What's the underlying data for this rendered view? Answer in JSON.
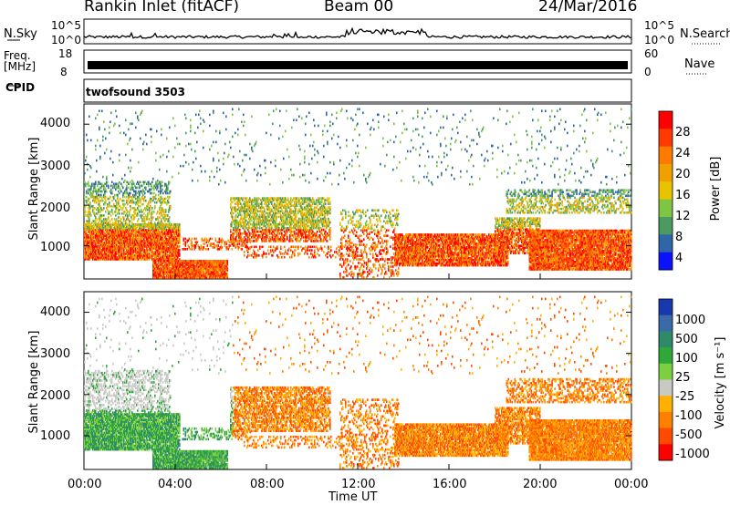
{
  "header": {
    "station": "Rankin Inlet (fitACF)",
    "beam": "Beam 00",
    "date": "24/Mar/2016"
  },
  "noise_panel": {
    "left_label": "N.Sky",
    "left_ticks": [
      "10^5",
      "10^0"
    ],
    "right_ticks": [
      "10^5",
      "10^0"
    ],
    "right_label": "N.Search"
  },
  "freq_panel": {
    "label_line1": "Freq.",
    "label_line2": "[MHz]",
    "left_ticks": [
      "18",
      "8"
    ],
    "right_ticks": [
      "60",
      "0"
    ],
    "right_label": "Nave"
  },
  "cpid_panel": {
    "label": "CPID",
    "program": "twofsound 3503"
  },
  "chart_data": [
    {
      "type": "heatmap",
      "panel": "power",
      "ylabel": "Slant Range [km]",
      "yticks": [
        "4000",
        "3000",
        "2000",
        "1000"
      ],
      "ytick_values": [
        4000,
        3000,
        2000,
        1000
      ],
      "ylim": [
        180,
        4500
      ],
      "xlim": [
        0,
        24
      ],
      "colorbar_label": "Power [dB]",
      "colorbar_ticks": [
        "28",
        "24",
        "20",
        "16",
        "12",
        "8",
        "4"
      ],
      "colorbar_colors": [
        "#ff0000",
        "#ff3a00",
        "#ff7a00",
        "#f0a000",
        "#e8c400",
        "#7fc442",
        "#4a9a62",
        "#2f66a8",
        "#0a12ff"
      ],
      "range": [
        0,
        32
      ]
    },
    {
      "type": "heatmap",
      "panel": "velocity",
      "ylabel": "Slant Range [km]",
      "yticks": [
        "4000",
        "3000",
        "2000",
        "1000"
      ],
      "ytick_values": [
        4000,
        3000,
        2000,
        1000
      ],
      "ylim": [
        180,
        4500
      ],
      "xlim": [
        0,
        24
      ],
      "colorbar_label": "Velocity [m s⁻¹]",
      "colorbar_ticks": [
        "1000",
        "500",
        "100",
        "25",
        "-25",
        "-100",
        "-500",
        "-1000"
      ],
      "colorbar_colors": [
        "#1838b0",
        "#3a6aa8",
        "#2f8a6a",
        "#2ea838",
        "#7cd040",
        "#c8c8c4",
        "#ffb000",
        "#ff8000",
        "#ff4a00",
        "#ff0000"
      ],
      "range": [
        -1200,
        1200
      ]
    }
  ],
  "xaxis": {
    "ticks": [
      "00:00",
      "04:00",
      "08:00",
      "12:00",
      "16:00",
      "20:00",
      "00:00"
    ],
    "tick_values": [
      0,
      4,
      8,
      12,
      16,
      20,
      24
    ],
    "label": "Time UT"
  }
}
